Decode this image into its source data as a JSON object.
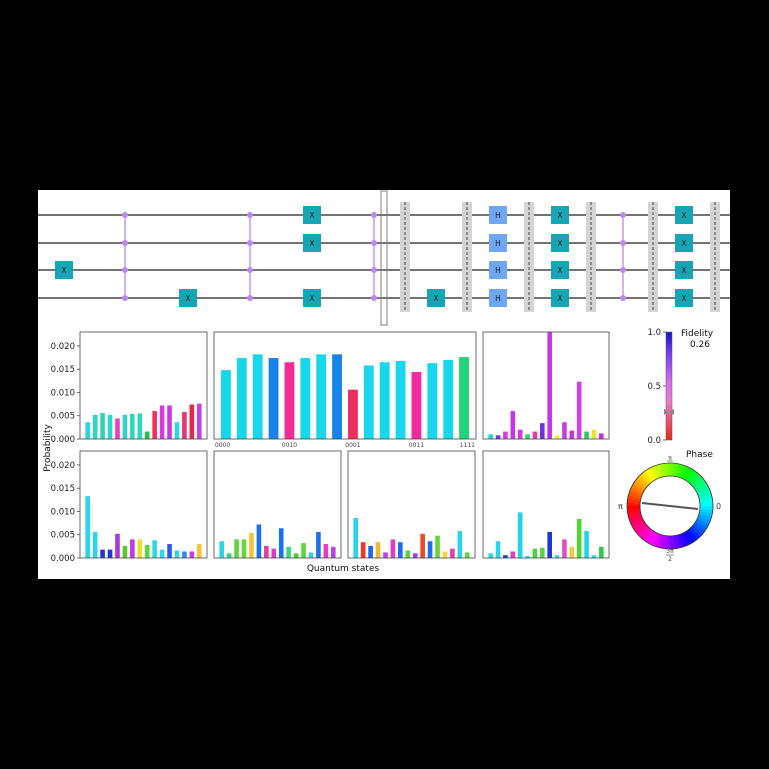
{
  "circuit": {
    "num_qubits": 4,
    "gate_label_x": "X",
    "gate_label_h": "H",
    "colors": {
      "x_gate": "#16a5b4",
      "h_gate": "#6fa6f5",
      "control": "#bb88f3",
      "barrier": "#d4d4d4"
    }
  },
  "labels": {
    "ylabel": "Probability",
    "xlabel": "Quantum states",
    "fidelity_title": "Fidelity",
    "fidelity_value": "0.26",
    "phase_title": "Phase",
    "phase_zero": "0",
    "phase_pi": "π",
    "phase_pi_half_num": "π",
    "phase_pi_half_den": "2",
    "phase_3pi_half_num": "3π",
    "phase_3pi_half_den": "2"
  },
  "colorbar": {
    "ticks": [
      "1.0",
      "0.5",
      "0.0"
    ],
    "value": 0.26
  },
  "chart_data": [
    {
      "type": "bar",
      "panel": "top-left",
      "ylim": [
        0,
        0.023
      ],
      "yticks": [
        "0.000",
        "0.005",
        "0.010",
        "0.015",
        "0.020"
      ],
      "values": [
        0.0036,
        0.0052,
        0.0056,
        0.0052,
        0.0044,
        0.0052,
        0.0054,
        0.0055,
        0.0016,
        0.006,
        0.0072,
        0.0072,
        0.0036,
        0.0058,
        0.0074,
        0.0076
      ],
      "colors": [
        "#27d7e0",
        "#2dd5c9",
        "#2fd4b8",
        "#28d7cd",
        "#e93cc9",
        "#2dd5c8",
        "#2fd5c4",
        "#2ed5c6",
        "#27c04c",
        "#f5305c",
        "#d63ad9",
        "#c73ce0",
        "#2ed8e1",
        "#e8376d",
        "#e82447",
        "#c53fe2"
      ]
    },
    {
      "type": "bar",
      "panel": "top-center",
      "ylim": [
        0,
        0.023
      ],
      "tick_labels": [
        "0000",
        "0010",
        "0001",
        "0011",
        "1111"
      ],
      "values": [
        0.0148,
        0.0174,
        0.0182,
        0.0174,
        0.0165,
        0.0174,
        0.0182,
        0.0182,
        0.0106,
        0.0158,
        0.0165,
        0.0168,
        0.0144,
        0.0163,
        0.017,
        0.0176
      ],
      "colors": [
        "#17d7ea",
        "#17d7ea",
        "#17d7ea",
        "#1682ea",
        "#f52c94",
        "#17d7ea",
        "#17d7ea",
        "#1682ea",
        "#f22d61",
        "#17d7ea",
        "#17d7ea",
        "#17d7ea",
        "#f12ca0",
        "#17d7ea",
        "#17d7ea",
        "#22d37a"
      ]
    },
    {
      "type": "bar",
      "panel": "top-right",
      "ylim": [
        0,
        0.023
      ],
      "values": [
        0.001,
        0.0008,
        0.0016,
        0.006,
        0.002,
        0.001,
        0.0016,
        0.0034,
        0.023,
        0.0008,
        0.0036,
        0.0018,
        0.0123,
        0.0016,
        0.002,
        0.0012
      ],
      "colors": [
        "#23cfe0",
        "#6a3ae0",
        "#d83ae8",
        "#c334ea",
        "#d637e0",
        "#2bd26e",
        "#e63aa3",
        "#6d33e0",
        "#c733ec",
        "#f3f233",
        "#c43ce5",
        "#cb2fdf",
        "#d33ce8",
        "#31c85d",
        "#e9e534",
        "#c42fe4"
      ]
    },
    {
      "type": "bar",
      "panel": "bottom-1",
      "ylim": [
        0,
        0.023
      ],
      "yticks": [
        "0.000",
        "0.005",
        "0.010",
        "0.015",
        "0.020"
      ],
      "values": [
        0.0133,
        0.0056,
        0.0018,
        0.0018,
        0.0052,
        0.0026,
        0.004,
        0.004,
        0.0028,
        0.0038,
        0.0018,
        0.003,
        0.0016,
        0.0014,
        0.0014,
        0.003
      ],
      "colors": [
        "#2ad6e9",
        "#26d6ea",
        "#2632d6",
        "#2833d7",
        "#a33ad9",
        "#59c92c",
        "#c23ae8",
        "#e8e22e",
        "#59d63c",
        "#2fd6e4",
        "#2ed8e3",
        "#2a5ee6",
        "#2fd6e7",
        "#2a8cea",
        "#cc3be3",
        "#f3c33a"
      ]
    },
    {
      "type": "bar",
      "panel": "bottom-2",
      "ylim": [
        0,
        0.023
      ],
      "values": [
        0.0036,
        0.001,
        0.004,
        0.004,
        0.0054,
        0.0072,
        0.0026,
        0.002,
        0.0064,
        0.0024,
        0.001,
        0.0032,
        0.0012,
        0.0056,
        0.003,
        0.0024
      ],
      "colors": [
        "#28d6ea",
        "#2dd67b",
        "#5dd63c",
        "#6ad53c",
        "#f2c437",
        "#1872ec",
        "#e43aa8",
        "#df3ac6",
        "#1872ec",
        "#3bd77f",
        "#3fd12d",
        "#5ad738",
        "#2fd8e2",
        "#1872ec",
        "#e73cc4",
        "#c13ee1"
      ]
    },
    {
      "type": "bar",
      "panel": "bottom-3",
      "ylim": [
        0,
        0.023
      ],
      "values": [
        0.0086,
        0.0034,
        0.0026,
        0.0034,
        0.0012,
        0.004,
        0.0034,
        0.0016,
        0.001,
        0.0052,
        0.0036,
        0.0048,
        0.0014,
        0.002,
        0.0058,
        0.0012
      ],
      "colors": [
        "#26d5ea",
        "#f2362a",
        "#1d66ee",
        "#f3b834",
        "#c13de8",
        "#e03ac8",
        "#1b6ef0",
        "#5ad63a",
        "#a33de0",
        "#f24727",
        "#1b6ef0",
        "#67d43a",
        "#f3d833",
        "#e73cb0",
        "#26d5ea",
        "#67d43a"
      ]
    },
    {
      "type": "bar",
      "panel": "bottom-4",
      "ylim": [
        0,
        0.023
      ],
      "values": [
        0.001,
        0.0036,
        0.0006,
        0.0014,
        0.0098,
        0.0004,
        0.002,
        0.0022,
        0.0056,
        0.0006,
        0.004,
        0.0024,
        0.0084,
        0.0058,
        0.0006,
        0.0024
      ],
      "colors": [
        "#28d6ea",
        "#2ad6e9",
        "#1736db",
        "#e03cc6",
        "#1ed6e6",
        "#1ed6e6",
        "#48d43c",
        "#59d63c",
        "#1736db",
        "#2ed7e2",
        "#e44cc1",
        "#f2cc36",
        "#52d42f",
        "#1ed6e6",
        "#1ed6e6",
        "#2fc84c"
      ]
    }
  ]
}
